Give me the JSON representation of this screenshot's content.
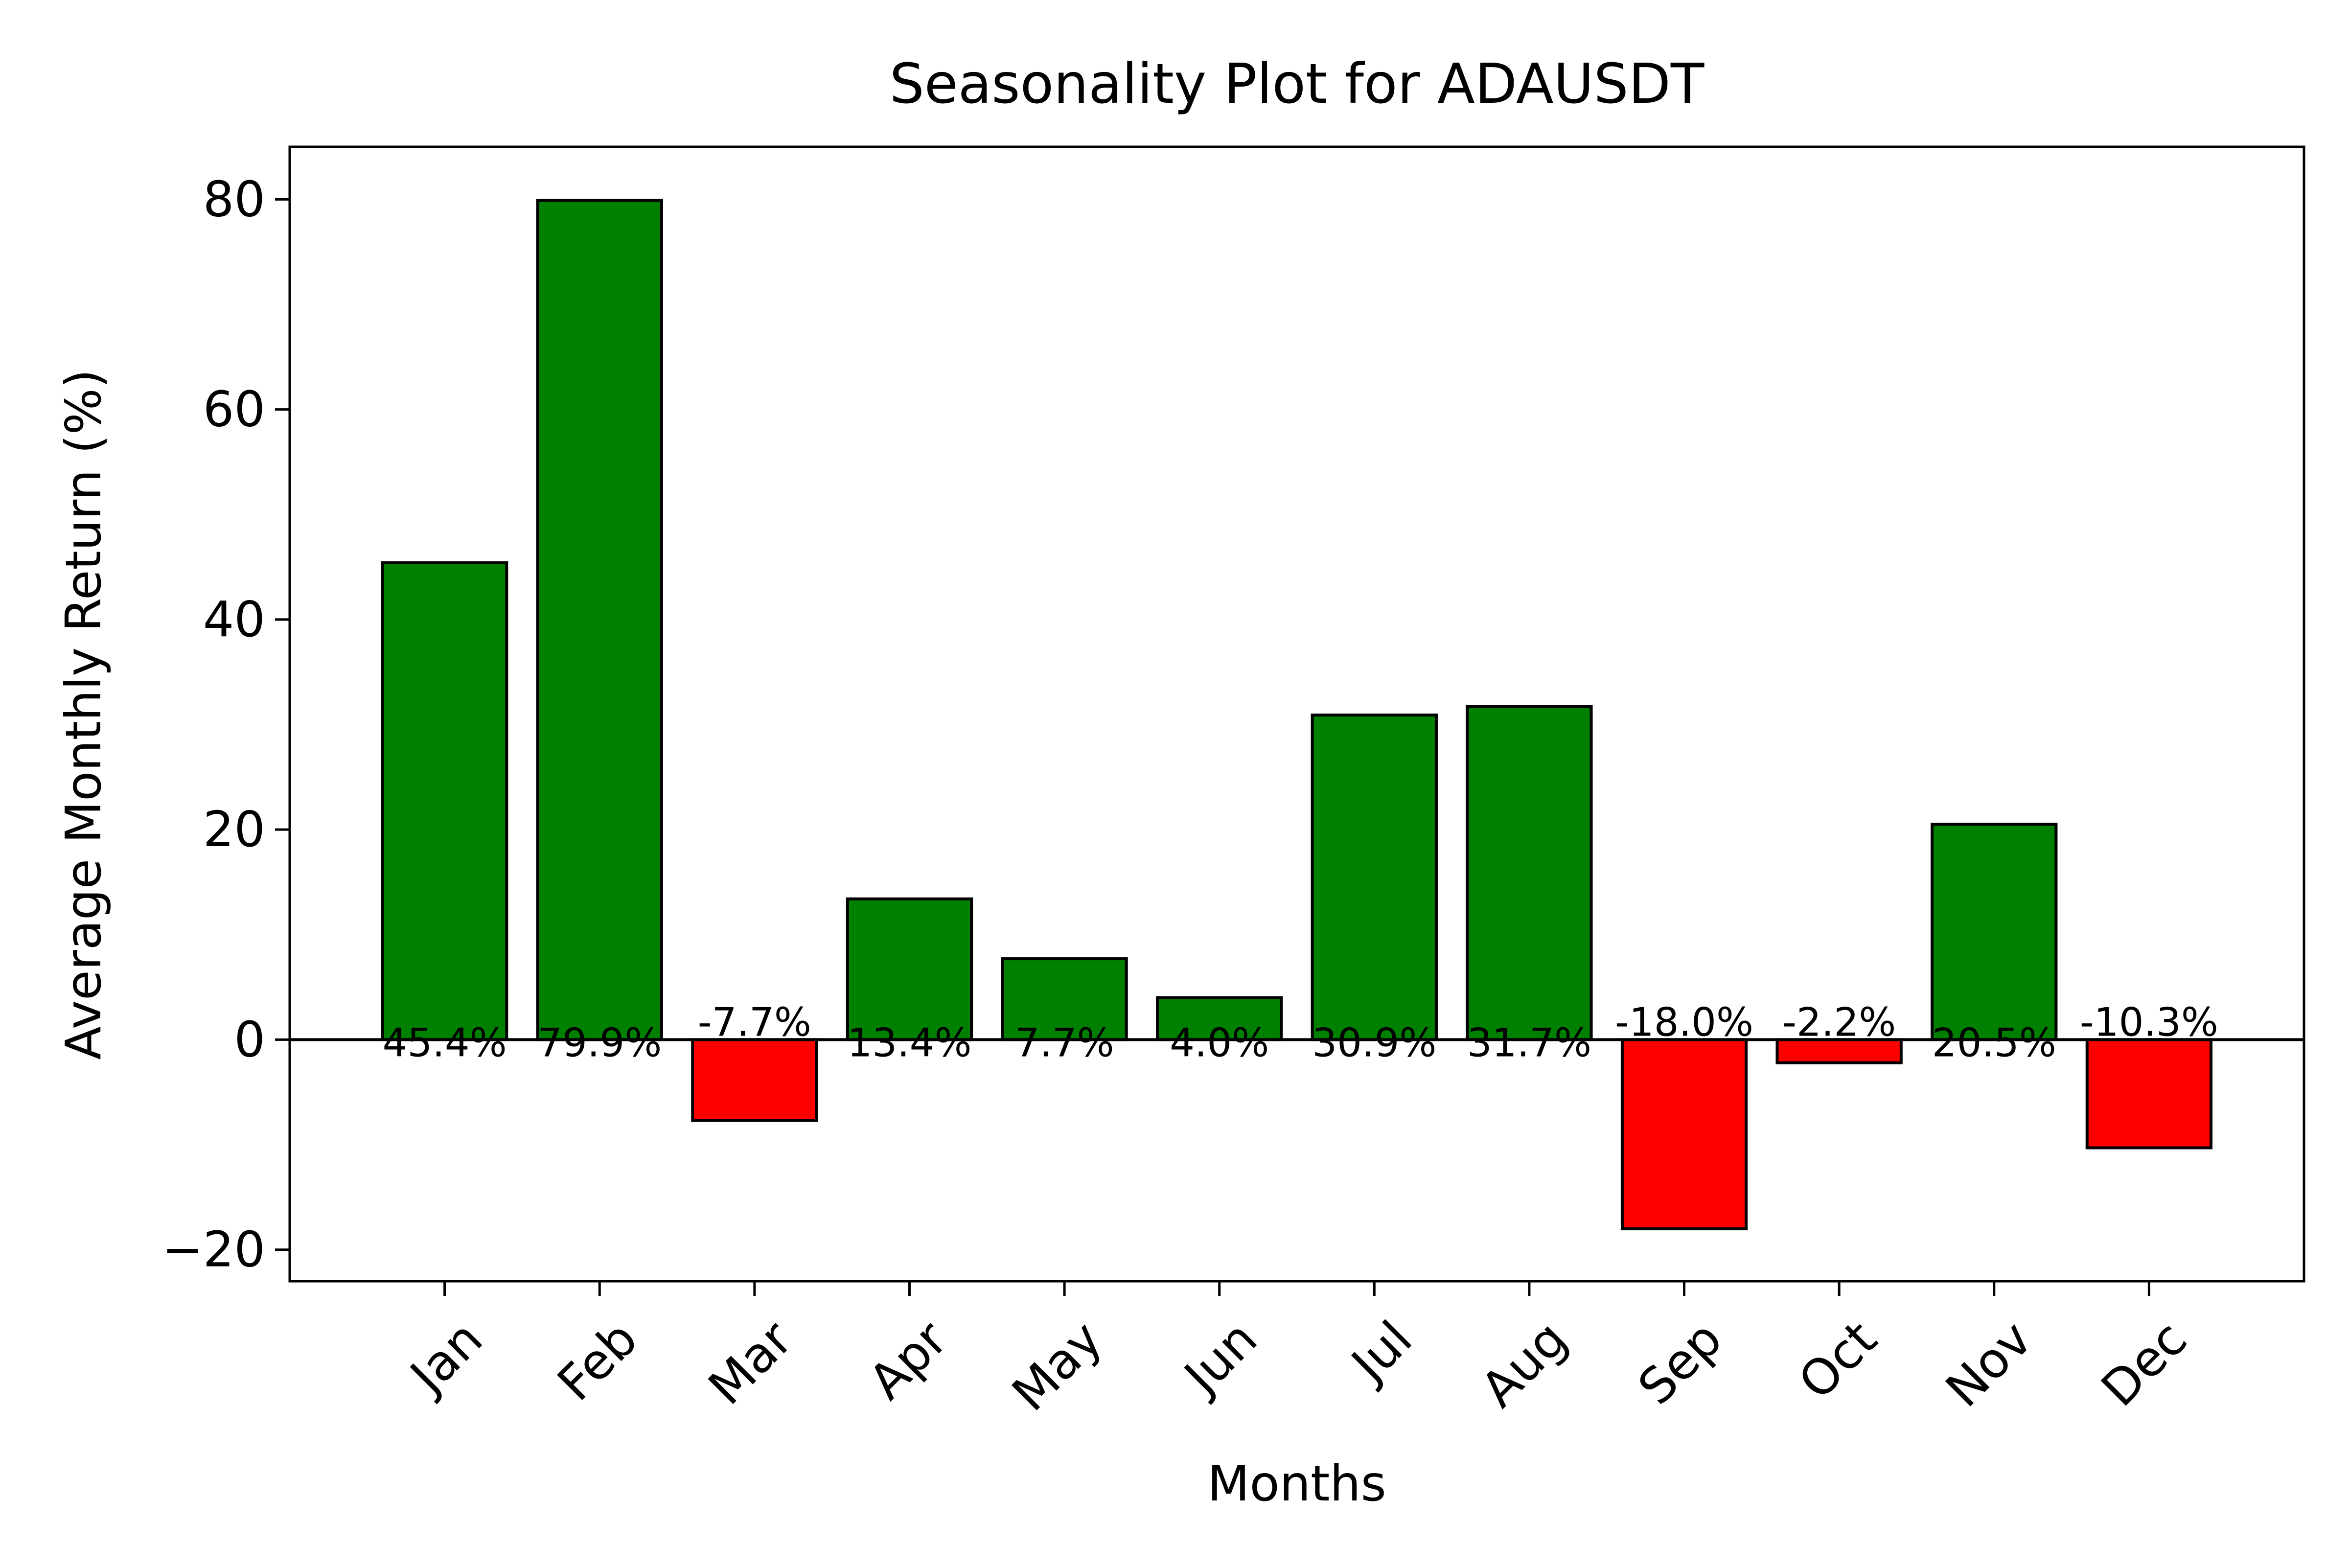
{
  "chart_data": {
    "type": "bar",
    "title": "Seasonality Plot for ADAUSDT",
    "xlabel": "Months",
    "ylabel": "Average Monthly Return (%)",
    "categories": [
      "Jan",
      "Feb",
      "Mar",
      "Apr",
      "May",
      "Jun",
      "Jul",
      "Aug",
      "Sep",
      "Oct",
      "Nov",
      "Dec"
    ],
    "values": [
      45.4,
      79.9,
      -7.7,
      13.4,
      7.7,
      4.0,
      30.9,
      31.7,
      -18.0,
      -2.2,
      20.5,
      -10.3
    ],
    "labels": [
      "45.4%",
      "79.9%",
      "-7.7%",
      "13.4%",
      "7.7%",
      "4.0%",
      "30.9%",
      "31.7%",
      "-18.0%",
      "-2.2%",
      "20.5%",
      "-10.3%"
    ],
    "ylim": [
      -23,
      85
    ],
    "yticks": [
      -20,
      0,
      20,
      40,
      60,
      80
    ],
    "ytick_labels": [
      "−20",
      "0",
      "20",
      "40",
      "60",
      "80"
    ],
    "colors": {
      "positive": "#008000",
      "negative": "#ff0000",
      "edge": "#000000",
      "zero_line": "#000000"
    },
    "grid": false,
    "legend": "none"
  }
}
